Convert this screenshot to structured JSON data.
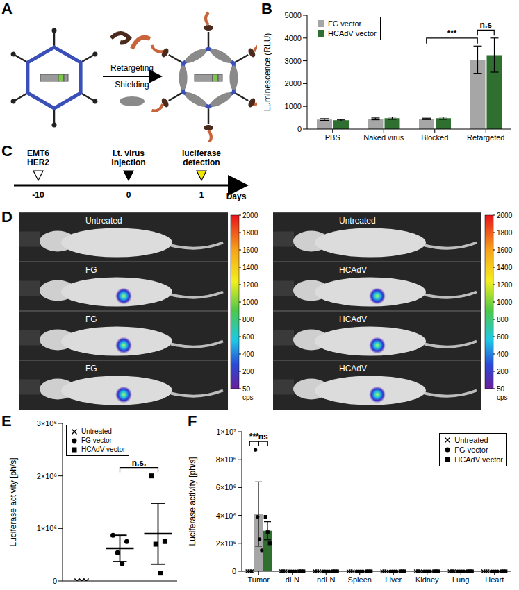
{
  "panels": [
    "A",
    "B",
    "C",
    "D",
    "E",
    "F"
  ],
  "diagram_A": {
    "arrow_texts": [
      "Retargeting",
      "Shielding"
    ]
  },
  "timeline_C": {
    "events": [
      {
        "day": -10,
        "label": [
          "EMT6",
          "HER2"
        ]
      },
      {
        "day": 0,
        "label": [
          "i.t. virus",
          "injection"
        ]
      },
      {
        "day": 1,
        "label": [
          "luciferase",
          "detection"
        ]
      }
    ],
    "axis_label": "Days"
  },
  "imaging_D": {
    "left_rows": [
      "Untreated",
      "FG",
      "FG",
      "FG"
    ],
    "right_rows": [
      "Untreated",
      "HCAdV",
      "HCAdV",
      "HCAdV"
    ],
    "colorbar": {
      "ticks": [
        50,
        200,
        400,
        600,
        800,
        1000,
        1200,
        1400,
        1600,
        1800,
        2000
      ],
      "unit": "cps"
    }
  },
  "chart_data": [
    {
      "panel": "B",
      "type": "bar",
      "categories": [
        "PBS",
        "Naked virus",
        "Blocked",
        "Retargeted"
      ],
      "series": [
        {
          "name": "FG vector",
          "color": "#a6a6a6",
          "values": [
            420,
            450,
            450,
            3050
          ],
          "errors": [
            40,
            40,
            30,
            600
          ]
        },
        {
          "name": "HCAdV vector",
          "color": "#2f6f30",
          "values": [
            390,
            480,
            480,
            3250
          ],
          "errors": [
            30,
            50,
            50,
            750
          ]
        }
      ],
      "y_label": "Luminescence (RLU)",
      "ylim": [
        0,
        5000
      ],
      "yticks": [
        0,
        1000,
        2000,
        3000,
        4000,
        5000
      ],
      "legend": "upper left",
      "annotations": [
        {
          "text": "***",
          "categories": [
            "Blocked",
            "Retargeted"
          ],
          "series": [
            "FG vector",
            "FG vector"
          ]
        },
        {
          "text": "n.s",
          "categories": [
            "Retargeted",
            "Retargeted"
          ],
          "series": [
            "FG vector",
            "HCAdV vector"
          ]
        }
      ]
    },
    {
      "panel": "E",
      "type": "scatter",
      "series": [
        {
          "name": "Untreated",
          "marker": "x",
          "values": [
            0,
            0,
            0
          ]
        },
        {
          "name": "FG vector",
          "marker": "circle",
          "values": [
            870000,
            540000,
            330000,
            750000
          ],
          "mean": 620000,
          "error": 250000
        },
        {
          "name": "HCAdV vector",
          "marker": "square",
          "values": [
            2000000,
            700000,
            150000,
            750000
          ],
          "mean": 900000,
          "error": 580000
        }
      ],
      "y_label": "Luciferase activity [ph/s]",
      "ylim": [
        0,
        3000000
      ],
      "yticks": [
        0,
        {
          "value": 1000000,
          "label": "1×10⁶"
        },
        {
          "value": 2000000,
          "label": "2×10⁶"
        },
        {
          "value": 3000000,
          "label": "3×10⁶"
        }
      ],
      "tick_labels": "y",
      "legend": "upper left",
      "annotations": [
        {
          "text": "n.s.",
          "series": [
            "FG vector",
            "HCAdV vector"
          ]
        }
      ]
    },
    {
      "panel": "F",
      "type": "bar",
      "categories": [
        "Tumor",
        "dLN",
        "ndLN",
        "Spleen",
        "Liver",
        "Kidney",
        "Lung",
        "Heart"
      ],
      "series": [
        {
          "name": "Untreated",
          "marker": "x",
          "color": "#000000",
          "values": [
            0,
            0,
            0,
            0,
            0,
            0,
            0,
            0
          ],
          "errors": [
            0,
            0,
            0,
            0,
            0,
            0,
            0,
            0
          ],
          "points": [
            [
              0,
              0,
              0
            ],
            [
              0,
              0,
              0
            ],
            [
              0,
              0,
              0
            ],
            [
              0,
              0,
              0
            ],
            [
              0,
              0,
              0
            ],
            [
              0,
              0,
              0
            ],
            [
              0,
              0,
              0
            ],
            [
              0,
              0,
              0
            ]
          ]
        },
        {
          "name": "FG vector",
          "marker": "circle",
          "color": "#a6a6a6",
          "values": [
            4100000,
            0,
            0,
            0,
            0,
            0,
            0,
            0
          ],
          "errors": [
            2300000,
            0,
            0,
            0,
            0,
            0,
            0,
            0
          ],
          "points": [
            [
              8700000,
              3900000,
              2300000,
              1500000
            ],
            [
              0,
              0,
              0,
              0
            ],
            [
              0,
              0,
              0,
              0
            ],
            [
              0,
              0,
              0,
              0
            ],
            [
              0,
              0,
              0,
              0
            ],
            [
              0,
              0,
              0,
              0
            ],
            [
              0,
              0,
              0,
              0
            ],
            [
              0,
              0,
              0,
              0
            ]
          ]
        },
        {
          "name": "HCAdV vector",
          "marker": "square",
          "color": "#2f6f30",
          "values": [
            2900000,
            0,
            0,
            0,
            0,
            0,
            0,
            0
          ],
          "errors": [
            650000,
            0,
            0,
            0,
            0,
            0,
            0,
            0
          ],
          "points": [
            [
              3900000,
              2800000,
              2000000
            ],
            [
              0,
              0,
              0
            ],
            [
              0,
              0,
              0
            ],
            [
              0,
              0,
              0
            ],
            [
              0,
              0,
              0
            ],
            [
              0,
              0,
              0
            ],
            [
              0,
              0,
              0
            ],
            [
              0,
              0,
              0
            ]
          ]
        }
      ],
      "y_label": "Luciferase activity [ph/s]",
      "ylim": [
        0,
        10000000
      ],
      "yticks": [
        0,
        {
          "value": 2000000,
          "label": "2×10⁶"
        },
        {
          "value": 4000000,
          "label": "4×10⁶"
        },
        {
          "value": 6000000,
          "label": "6×10⁶"
        },
        {
          "value": 8000000,
          "label": "8×10⁶"
        },
        {
          "value": 10000000,
          "label": "1×10⁷"
        }
      ],
      "legend": "upper right",
      "annotations": [
        {
          "text": "***",
          "categories": [
            "Tumor",
            "Tumor"
          ],
          "series": [
            "Untreated",
            "FG vector"
          ]
        },
        {
          "text": "ns",
          "categories": [
            "Tumor",
            "Tumor"
          ],
          "series": [
            "FG vector",
            "HCAdV vector"
          ]
        }
      ]
    }
  ]
}
